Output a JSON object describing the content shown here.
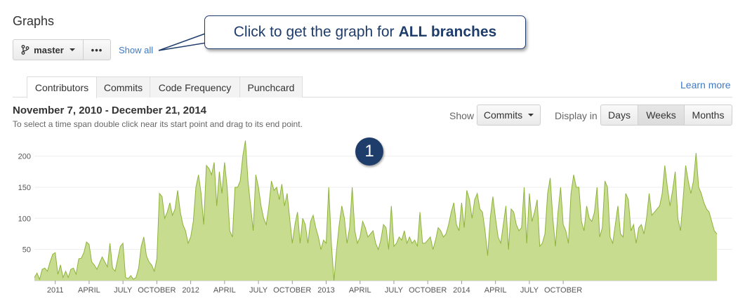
{
  "page_title": "Graphs",
  "branch_button": {
    "label": "master",
    "icon": "branch-icon"
  },
  "more_button": {
    "label": "•••"
  },
  "show_all_link": "Show all",
  "callout": {
    "text": "Click to get the graph for",
    "bold": "ALL branches"
  },
  "tabs": [
    {
      "label": "Contributors",
      "active": true
    },
    {
      "label": "Commits",
      "active": false
    },
    {
      "label": "Code Frequency",
      "active": false
    },
    {
      "label": "Punchcard",
      "active": false
    }
  ],
  "learn_more_link": "Learn more",
  "date_range": "November 7, 2010 - December 21, 2014",
  "instructions": "To select a time span double click near its start point and drag to its end point.",
  "show_label": "Show",
  "commits_dropdown": "Commits",
  "display_label": "Display in",
  "display_options": {
    "days": "Days",
    "weeks": "Weeks",
    "months": "Months",
    "selected": "Weeks"
  },
  "step_badge": "1",
  "colors": {
    "area_fill": "#c8dc8f",
    "area_stroke": "#8db33a",
    "callout_border": "#1f3d6b",
    "link": "#4078c0"
  },
  "chart_data": {
    "type": "area",
    "ylim": [
      0,
      230
    ],
    "yticks": [
      50,
      100,
      150,
      200
    ],
    "x_labels": [
      {
        "label": "2011",
        "week": 8
      },
      {
        "label": "APRIL",
        "week": 21
      },
      {
        "label": "JULY",
        "week": 34
      },
      {
        "label": "OCTOBER",
        "week": 47
      },
      {
        "label": "2012",
        "week": 60
      },
      {
        "label": "APRIL",
        "week": 73
      },
      {
        "label": "JULY",
        "week": 86
      },
      {
        "label": "OCTOBER",
        "week": 99
      },
      {
        "label": "2013",
        "week": 112
      },
      {
        "label": "APRIL",
        "week": 125
      },
      {
        "label": "JULY",
        "week": 138
      },
      {
        "label": "OCTOBER",
        "week": 151
      },
      {
        "label": "2014",
        "week": 164
      },
      {
        "label": "APRIL",
        "week": 177
      },
      {
        "label": "JULY",
        "week": 190
      },
      {
        "label": "OCTOBER",
        "week": 203
      }
    ],
    "values": [
      5,
      12,
      2,
      18,
      20,
      15,
      30,
      42,
      45,
      10,
      25,
      5,
      15,
      5,
      18,
      20,
      10,
      35,
      36,
      45,
      62,
      58,
      30,
      25,
      18,
      28,
      38,
      30,
      22,
      60,
      20,
      15,
      35,
      55,
      60,
      5,
      3,
      8,
      2,
      5,
      20,
      55,
      70,
      40,
      30,
      25,
      15,
      35,
      140,
      135,
      100,
      110,
      125,
      105,
      115,
      145,
      110,
      90,
      80,
      60,
      70,
      95,
      150,
      170,
      140,
      90,
      185,
      180,
      170,
      190,
      120,
      175,
      140,
      190,
      150,
      80,
      70,
      150,
      150,
      160,
      200,
      225,
      160,
      120,
      80,
      170,
      150,
      120,
      100,
      90,
      120,
      160,
      145,
      150,
      130,
      155,
      120,
      140,
      100,
      60,
      90,
      110,
      60,
      100,
      90,
      60,
      95,
      105,
      85,
      70,
      50,
      65,
      60,
      150,
      60,
      0,
      50,
      90,
      120,
      100,
      60,
      85,
      150,
      80,
      60,
      70,
      95,
      85,
      70,
      75,
      80,
      60,
      50,
      65,
      90,
      85,
      50,
      120,
      55,
      60,
      70,
      65,
      80,
      60,
      70,
      60,
      65,
      55,
      110,
      60,
      60,
      65,
      70,
      50,
      65,
      85,
      80,
      70,
      75,
      90,
      110,
      125,
      90,
      80,
      125,
      85,
      145,
      130,
      100,
      130,
      140,
      115,
      110,
      80,
      40,
      100,
      135,
      100,
      70,
      60,
      90,
      120,
      50,
      115,
      110,
      90,
      80,
      85,
      150,
      60,
      140,
      95,
      110,
      130,
      55,
      60,
      75,
      140,
      165,
      100,
      55,
      110,
      150,
      90,
      80,
      60,
      140,
      170,
      150,
      150,
      95,
      80,
      120,
      100,
      95,
      110,
      150,
      70,
      85,
      160,
      150,
      70,
      60,
      90,
      120,
      75,
      70,
      140,
      130,
      80,
      90,
      60,
      85,
      90,
      75,
      100,
      140,
      105,
      110,
      115,
      120,
      140,
      185,
      150,
      120,
      145,
      175,
      100,
      80,
      130,
      185,
      160,
      140,
      160,
      205,
      150,
      140,
      125,
      115,
      110,
      95,
      80,
      75
    ]
  }
}
